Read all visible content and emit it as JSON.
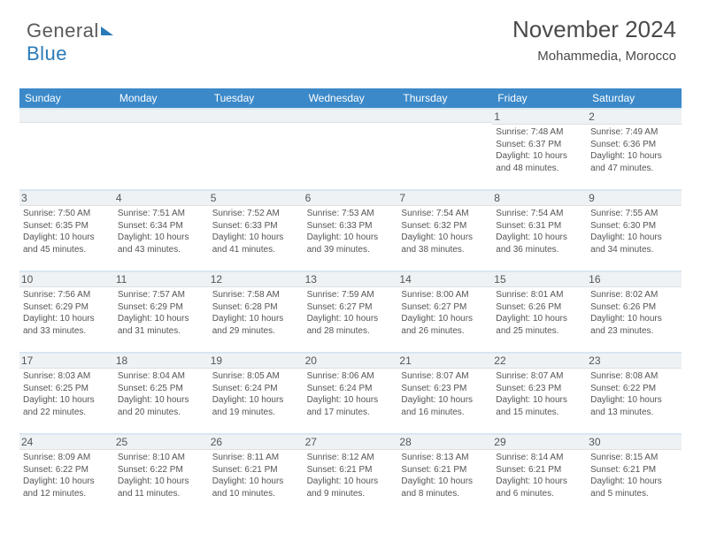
{
  "logo": {
    "part1": "General",
    "part2": "Blue"
  },
  "header": {
    "month": "November 2024",
    "location": "Mohammedia, Morocco"
  },
  "colors": {
    "header_bg": "#3b89c9",
    "header_text": "#ffffff",
    "cell_border": "#d9e6f2",
    "num_band_bg": "#eef2f5",
    "text": "#555555",
    "logo_gray": "#5a5a5a",
    "logo_blue": "#2a7ab8"
  },
  "weekdays": [
    "Sunday",
    "Monday",
    "Tuesday",
    "Wednesday",
    "Thursday",
    "Friday",
    "Saturday"
  ],
  "blank_cells": 5,
  "days": [
    {
      "n": "1",
      "sr": "7:48 AM",
      "ss": "6:37 PM",
      "dl": "10 hours and 48 minutes."
    },
    {
      "n": "2",
      "sr": "7:49 AM",
      "ss": "6:36 PM",
      "dl": "10 hours and 47 minutes."
    },
    {
      "n": "3",
      "sr": "7:50 AM",
      "ss": "6:35 PM",
      "dl": "10 hours and 45 minutes."
    },
    {
      "n": "4",
      "sr": "7:51 AM",
      "ss": "6:34 PM",
      "dl": "10 hours and 43 minutes."
    },
    {
      "n": "5",
      "sr": "7:52 AM",
      "ss": "6:33 PM",
      "dl": "10 hours and 41 minutes."
    },
    {
      "n": "6",
      "sr": "7:53 AM",
      "ss": "6:33 PM",
      "dl": "10 hours and 39 minutes."
    },
    {
      "n": "7",
      "sr": "7:54 AM",
      "ss": "6:32 PM",
      "dl": "10 hours and 38 minutes."
    },
    {
      "n": "8",
      "sr": "7:54 AM",
      "ss": "6:31 PM",
      "dl": "10 hours and 36 minutes."
    },
    {
      "n": "9",
      "sr": "7:55 AM",
      "ss": "6:30 PM",
      "dl": "10 hours and 34 minutes."
    },
    {
      "n": "10",
      "sr": "7:56 AM",
      "ss": "6:29 PM",
      "dl": "10 hours and 33 minutes."
    },
    {
      "n": "11",
      "sr": "7:57 AM",
      "ss": "6:29 PM",
      "dl": "10 hours and 31 minutes."
    },
    {
      "n": "12",
      "sr": "7:58 AM",
      "ss": "6:28 PM",
      "dl": "10 hours and 29 minutes."
    },
    {
      "n": "13",
      "sr": "7:59 AM",
      "ss": "6:27 PM",
      "dl": "10 hours and 28 minutes."
    },
    {
      "n": "14",
      "sr": "8:00 AM",
      "ss": "6:27 PM",
      "dl": "10 hours and 26 minutes."
    },
    {
      "n": "15",
      "sr": "8:01 AM",
      "ss": "6:26 PM",
      "dl": "10 hours and 25 minutes."
    },
    {
      "n": "16",
      "sr": "8:02 AM",
      "ss": "6:26 PM",
      "dl": "10 hours and 23 minutes."
    },
    {
      "n": "17",
      "sr": "8:03 AM",
      "ss": "6:25 PM",
      "dl": "10 hours and 22 minutes."
    },
    {
      "n": "18",
      "sr": "8:04 AM",
      "ss": "6:25 PM",
      "dl": "10 hours and 20 minutes."
    },
    {
      "n": "19",
      "sr": "8:05 AM",
      "ss": "6:24 PM",
      "dl": "10 hours and 19 minutes."
    },
    {
      "n": "20",
      "sr": "8:06 AM",
      "ss": "6:24 PM",
      "dl": "10 hours and 17 minutes."
    },
    {
      "n": "21",
      "sr": "8:07 AM",
      "ss": "6:23 PM",
      "dl": "10 hours and 16 minutes."
    },
    {
      "n": "22",
      "sr": "8:07 AM",
      "ss": "6:23 PM",
      "dl": "10 hours and 15 minutes."
    },
    {
      "n": "23",
      "sr": "8:08 AM",
      "ss": "6:22 PM",
      "dl": "10 hours and 13 minutes."
    },
    {
      "n": "24",
      "sr": "8:09 AM",
      "ss": "6:22 PM",
      "dl": "10 hours and 12 minutes."
    },
    {
      "n": "25",
      "sr": "8:10 AM",
      "ss": "6:22 PM",
      "dl": "10 hours and 11 minutes."
    },
    {
      "n": "26",
      "sr": "8:11 AM",
      "ss": "6:21 PM",
      "dl": "10 hours and 10 minutes."
    },
    {
      "n": "27",
      "sr": "8:12 AM",
      "ss": "6:21 PM",
      "dl": "10 hours and 9 minutes."
    },
    {
      "n": "28",
      "sr": "8:13 AM",
      "ss": "6:21 PM",
      "dl": "10 hours and 8 minutes."
    },
    {
      "n": "29",
      "sr": "8:14 AM",
      "ss": "6:21 PM",
      "dl": "10 hours and 6 minutes."
    },
    {
      "n": "30",
      "sr": "8:15 AM",
      "ss": "6:21 PM",
      "dl": "10 hours and 5 minutes."
    }
  ],
  "labels": {
    "sunrise": "Sunrise: ",
    "sunset": "Sunset: ",
    "daylight": "Daylight: "
  }
}
